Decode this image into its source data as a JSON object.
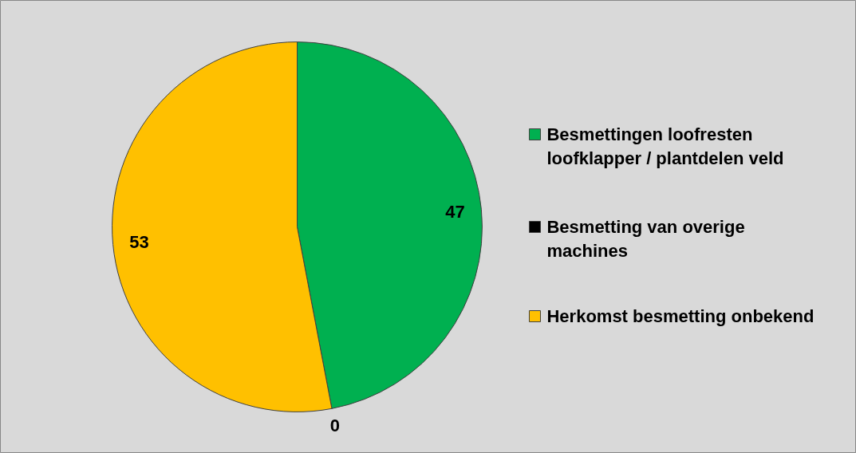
{
  "chart_data": {
    "type": "pie",
    "categories": [
      "Besmettingen loofresten loofklapper / plantdelen veld",
      "Besmetting van overige machines",
      "Herkomst besmetting onbekend"
    ],
    "values": [
      47,
      0,
      53
    ],
    "colors": [
      "#00b050",
      "#000000",
      "#ffc000"
    ],
    "value_labels": [
      "47",
      "0",
      "53"
    ],
    "legend": "right"
  }
}
